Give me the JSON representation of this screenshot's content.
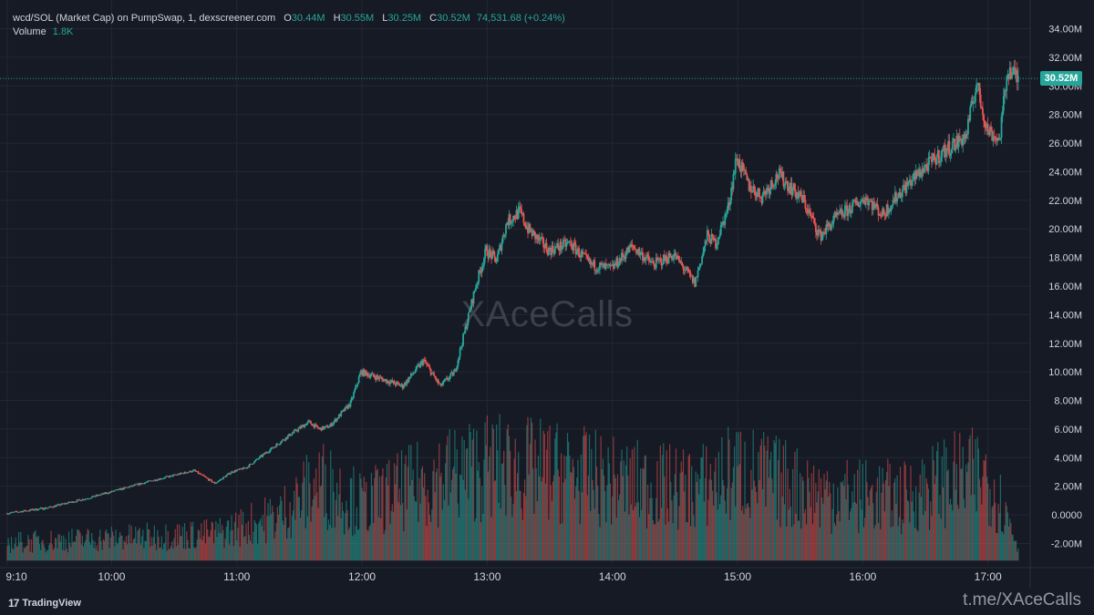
{
  "header": {
    "symbol": "wcd/SOL (Market Cap) on PumpSwap, 1, dexscreener.com",
    "ohlc": [
      {
        "k": "O",
        "v": "30.44M"
      },
      {
        "k": "H",
        "v": "30.55M"
      },
      {
        "k": "L",
        "v": "30.25M"
      },
      {
        "k": "C",
        "v": "30.52M"
      }
    ],
    "change": "74,531.68 (+0.24%)",
    "volume_label": "Volume",
    "volume_value": "1.8K"
  },
  "watermark": "XAceCalls",
  "current_price_label": "30.52M",
  "footer": {
    "brand": "TradingView",
    "telegram": "t.me/XAceCalls"
  },
  "colors": {
    "background": "#161a25",
    "up": "#26a69a",
    "down": "#ef5350",
    "grid": "#232733",
    "axis_text": "#d1d4dc"
  },
  "chart_data": {
    "type": "candlestick",
    "title": "",
    "xlabel": "",
    "ylabel": "",
    "interval": "1 minute",
    "ylim": [
      -3.5,
      35.5
    ],
    "y_ticks": [
      "34.00M",
      "32.00M",
      "30.00M",
      "28.00M",
      "26.00M",
      "24.00M",
      "22.00M",
      "20.00M",
      "18.00M",
      "16.00M",
      "14.00M",
      "12.00M",
      "10.00M",
      "8.00M",
      "6.00M",
      "4.00M",
      "2.00M",
      "0.0000",
      "-2.00M"
    ],
    "y_tick_values": [
      34,
      32,
      30,
      28,
      26,
      24,
      22,
      20,
      18,
      16,
      14,
      12,
      10,
      8,
      6,
      4,
      2,
      0,
      -2
    ],
    "x_ticks": [
      "9:10",
      "10:00",
      "11:00",
      "12:00",
      "13:00",
      "14:00",
      "15:00",
      "16:00",
      "17:00"
    ],
    "x_tick_minutes": [
      550,
      600,
      660,
      720,
      780,
      840,
      900,
      960,
      1020
    ],
    "x_range_minutes": [
      550,
      1035
    ],
    "current_price": 30.52,
    "price_series": {
      "name": "Market Cap",
      "unit": "M",
      "x_minutes": [
        550,
        570,
        590,
        605,
        620,
        640,
        650,
        658,
        665,
        685,
        695,
        700,
        705,
        710,
        715,
        720,
        730,
        740,
        750,
        758,
        765,
        775,
        780,
        785,
        790,
        796,
        800,
        810,
        820,
        830,
        840,
        850,
        860,
        870,
        880,
        886,
        890,
        896,
        900,
        906,
        912,
        920,
        932,
        940,
        948,
        955,
        962,
        970,
        978,
        988,
        1000,
        1010,
        1015,
        1020,
        1026,
        1030,
        1035
      ],
      "values": [
        0.1,
        0.5,
        1.2,
        1.8,
        2.4,
        3.1,
        2.2,
        3.0,
        3.3,
        5.5,
        6.5,
        6.0,
        6.2,
        7.0,
        7.8,
        10.0,
        9.5,
        9.0,
        10.8,
        9.0,
        10.0,
        16.0,
        18.5,
        17.8,
        20.5,
        21.2,
        20.0,
        18.5,
        19.0,
        17.5,
        17.2,
        18.8,
        17.5,
        18.2,
        16.2,
        19.5,
        19.0,
        21.5,
        25.0,
        23.0,
        22.3,
        23.8,
        22.0,
        19.5,
        20.8,
        21.5,
        22.2,
        21.0,
        22.5,
        24.0,
        25.5,
        26.5,
        30.2,
        27.0,
        26.2,
        31.2,
        30.52
      ]
    },
    "volume_series": {
      "name": "Volume",
      "x_minutes": [
        550,
        600,
        650,
        680,
        700,
        720,
        760,
        780,
        820,
        840,
        880,
        900,
        940,
        980,
        1000,
        1020,
        1030,
        1035
      ],
      "values_scaled": [
        0.8,
        1.0,
        1.2,
        2.0,
        3.5,
        2.5,
        3.8,
        4.2,
        3.9,
        3.5,
        3.2,
        4.0,
        3.0,
        2.8,
        3.6,
        3.8,
        1.8,
        0.5
      ]
    }
  }
}
